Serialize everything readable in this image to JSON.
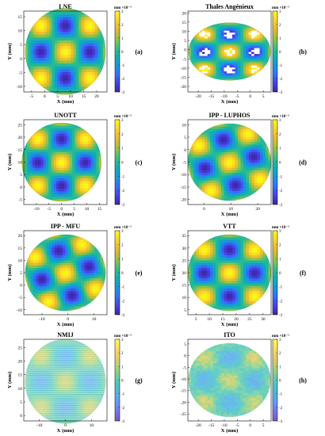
{
  "figure": {
    "colormap": [
      "#3e26a8",
      "#4743e6",
      "#2f76fb",
      "#149bd8",
      "#0cb1b0",
      "#41bf7d",
      "#9bc33f",
      "#e6b92f",
      "#fcd428",
      "#f9fb14"
    ],
    "panels": [
      {
        "title": "LNE",
        "tag": "(a)",
        "xlabel": "X (mm)",
        "ylabel": "Y (mm)",
        "xticks": [
          "-5",
          "0",
          "5",
          "10",
          "15",
          "20"
        ],
        "yticks": [
          "-10",
          "-5",
          "0",
          "5",
          "10",
          "15"
        ],
        "colorbar": {
          "unit": "mm ×10⁻³",
          "ticks": [
            "3",
            "2",
            "1",
            "0",
            "-1",
            "-2",
            "-3"
          ]
        },
        "chart_data": {
          "type": "heatmap",
          "xlim": [
            -8,
            24
          ],
          "ylim": [
            -12,
            17
          ],
          "clim": [
            -3,
            3
          ],
          "center": [
            8,
            2.5
          ],
          "radius": 15.5,
          "pitch": 9.4,
          "rotation_deg": 0,
          "amplitude": 3,
          "texture": "smooth"
        }
      },
      {
        "title": "Thales Angénieux",
        "tag": "(b)",
        "xlabel": "X (mm)",
        "ylabel": "Y (mm)",
        "xticks": [
          "-20",
          "-15",
          "-10",
          "-5",
          "0",
          "5"
        ],
        "yticks": [
          "-20",
          "-15",
          "-10",
          "-5",
          "0",
          "5",
          "10",
          "15",
          "20"
        ],
        "colorbar": {
          "unit": "mm ×10⁻³",
          "ticks": [
            "3",
            "2",
            "1",
            "0",
            "-1",
            "-2",
            "-3"
          ]
        },
        "chart_data": {
          "type": "heatmap",
          "xlim": [
            -24,
            8
          ],
          "ylim": [
            -23,
            21
          ],
          "clim": [
            -3,
            3
          ],
          "center": [
            -8,
            -1
          ],
          "radius": 15.8,
          "pitch": 9.6,
          "rotation_deg": 0,
          "amplitude": 3,
          "texture": "dropouts"
        }
      },
      {
        "title": "UNOTT",
        "tag": "(c)",
        "xlabel": "X (mm)",
        "ylabel": "Y (mm)",
        "xticks": [
          "-10",
          "-5",
          "0",
          "5",
          "10",
          "15"
        ],
        "yticks": [
          "-5",
          "0",
          "5",
          "10",
          "15",
          "20",
          "25"
        ],
        "colorbar": {
          "unit": "mm ×10⁻³",
          "ticks": [
            "3",
            "2",
            "1",
            "0",
            "-1",
            "-2",
            "-3"
          ]
        },
        "chart_data": {
          "type": "heatmap",
          "xlim": [
            -15,
            18
          ],
          "ylim": [
            -7,
            27
          ],
          "clim": [
            -3,
            3
          ],
          "center": [
            0,
            10
          ],
          "radius": 15.8,
          "pitch": 9.4,
          "rotation_deg": 0,
          "amplitude": 3,
          "texture": "smooth"
        }
      },
      {
        "title": "IPP - LUPHOS",
        "tag": "(d)",
        "xlabel": "X (mm)",
        "ylabel": "Y (mm)",
        "xticks": [
          "0",
          "10",
          "20"
        ],
        "yticks": [
          "-20",
          "-15",
          "-10",
          "-5",
          "0",
          "5",
          "10"
        ],
        "colorbar": {
          "unit": "mm ×10⁻³",
          "ticks": [
            "3",
            "2",
            "1",
            "0",
            "-1",
            "-2",
            "-3"
          ]
        },
        "chart_data": {
          "type": "heatmap",
          "xlim": [
            -6,
            25
          ],
          "ylim": [
            -22,
            12
          ],
          "clim": [
            -3,
            3
          ],
          "center": [
            9.5,
            -5
          ],
          "radius": 15.5,
          "pitch": 9.4,
          "rotation_deg": 14,
          "amplitude": 3,
          "texture": "smooth"
        }
      },
      {
        "title": "IPP - MFU",
        "tag": "(e)",
        "xlabel": "X (mm)",
        "ylabel": "Y (mm)",
        "xticks": [
          "-10",
          "0",
          "10"
        ],
        "yticks": [
          "-10",
          "-5",
          "0",
          "5",
          "10",
          "15",
          "20"
        ],
        "colorbar": {
          "unit": "mm ×10⁻³",
          "ticks": [
            "3",
            "2",
            "1",
            "0",
            "-1",
            "-2",
            "-3"
          ]
        },
        "chart_data": {
          "type": "heatmap",
          "xlim": [
            -17,
            15
          ],
          "ylim": [
            -12,
            22
          ],
          "clim": [
            -3,
            3
          ],
          "center": [
            -1,
            5
          ],
          "radius": 15.5,
          "pitch": 9.4,
          "rotation_deg": 16,
          "amplitude": 3,
          "texture": "smooth"
        }
      },
      {
        "title": "VTT",
        "tag": "(f)",
        "xlabel": "X (mm)",
        "ylabel": "Y (mm)",
        "xticks": [
          "5",
          "10",
          "15",
          "20",
          "25",
          "30"
        ],
        "yticks": [
          "5",
          "10",
          "15",
          "20",
          "25",
          "30",
          "35"
        ],
        "colorbar": {
          "unit": "mm ×10⁻³",
          "ticks": [
            "3",
            "2",
            "1",
            "0",
            "-1",
            "-2",
            "-3"
          ]
        },
        "chart_data": {
          "type": "heatmap",
          "xlim": [
            2,
            33
          ],
          "ylim": [
            3,
            37
          ],
          "clim": [
            -3,
            3
          ],
          "center": [
            17.5,
            20
          ],
          "radius": 15.5,
          "pitch": 9.4,
          "rotation_deg": 0,
          "amplitude": 3,
          "texture": "smooth"
        }
      },
      {
        "title": "NMIJ",
        "tag": "(g)",
        "xlabel": "X (mm)",
        "ylabel": "Y (mm)",
        "xticks": [
          "-10",
          "0",
          "10"
        ],
        "yticks": [
          "0",
          "5",
          "10",
          "15",
          "20",
          "25"
        ],
        "colorbar": {
          "unit": "mm ×10⁻³",
          "ticks": [
            "3",
            "2",
            "1",
            "0",
            "-1",
            "-2",
            "-3"
          ]
        },
        "chart_data": {
          "type": "heatmap",
          "xlim": [
            -16,
            16
          ],
          "ylim": [
            -2,
            28
          ],
          "clim": [
            -3,
            3
          ],
          "center": [
            0,
            12.5
          ],
          "radius": 15.5,
          "pitch": 9.4,
          "rotation_deg": 0,
          "amplitude": 1.3,
          "texture": "striped"
        }
      },
      {
        "title": "ITO",
        "tag": "(h)",
        "xlabel": "X (mm)",
        "ylabel": "Y (mm)",
        "xticks": [
          "-20",
          "-15",
          "-10",
          "-5",
          "0",
          "5"
        ],
        "yticks": [
          "-25",
          "-20",
          "-15",
          "-10",
          "-5",
          "0",
          "5"
        ],
        "colorbar": {
          "unit": "mm ×10⁻³",
          "ticks": [
            "3",
            "2",
            "1",
            "0",
            "-1",
            "-2",
            "-3"
          ]
        },
        "chart_data": {
          "type": "heatmap",
          "xlim": [
            -24,
            8
          ],
          "ylim": [
            -28,
            7
          ],
          "clim": [
            -3,
            3
          ],
          "center": [
            -8,
            -10.5
          ],
          "radius": 15.8,
          "pitch": 9.6,
          "rotation_deg": 0,
          "amplitude": 1.3,
          "texture": "mottled"
        }
      }
    ]
  }
}
